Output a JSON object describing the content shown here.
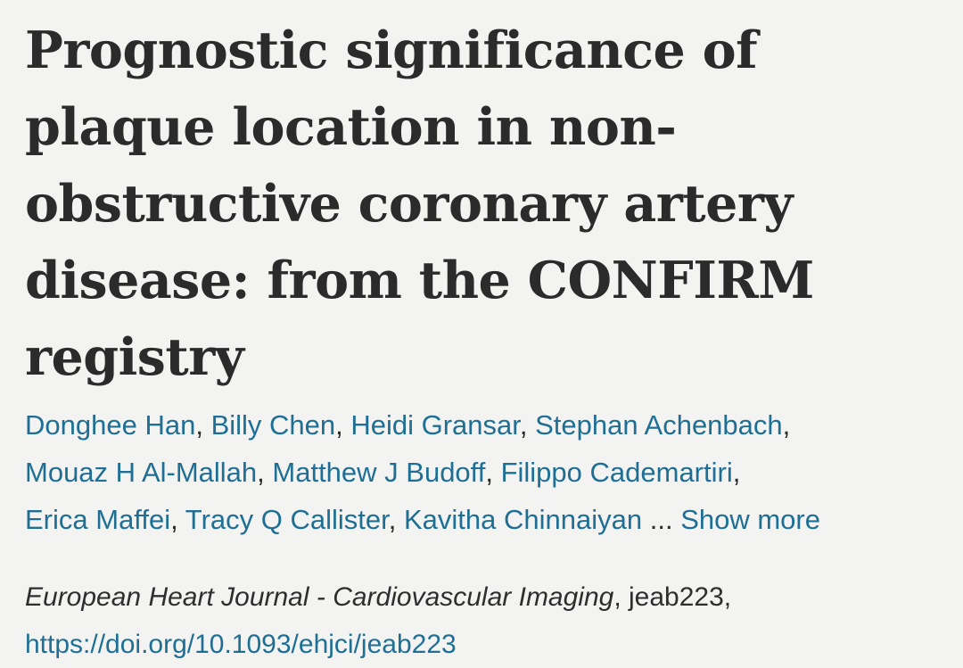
{
  "article": {
    "title_lines": [
      "Prognostic significance of",
      "plaque location in non-",
      "obstructive coronary artery",
      "disease: from the CONFIRM",
      "registry"
    ],
    "authors": [
      "Donghee Han",
      "Billy Chen",
      "Heidi Gransar",
      "Stephan Achenbach",
      "Mouaz H Al-Mallah",
      "Matthew J Budoff",
      "Filippo Cademartiri",
      "Erica Maffei",
      "Tracy Q Callister",
      "Kavitha Chinnaiyan"
    ],
    "ellipsis": "...",
    "show_more_label": "Show more",
    "citation": {
      "journal": "European Heart Journal - Cardiovascular Imaging",
      "article_id": "jeab223",
      "doi_url": "https://doi.org/10.1093/ehjci/jeab223"
    }
  },
  "colors": {
    "link": "#1f6f95",
    "text": "#2a2a2a",
    "background": "#f3f3f1"
  }
}
